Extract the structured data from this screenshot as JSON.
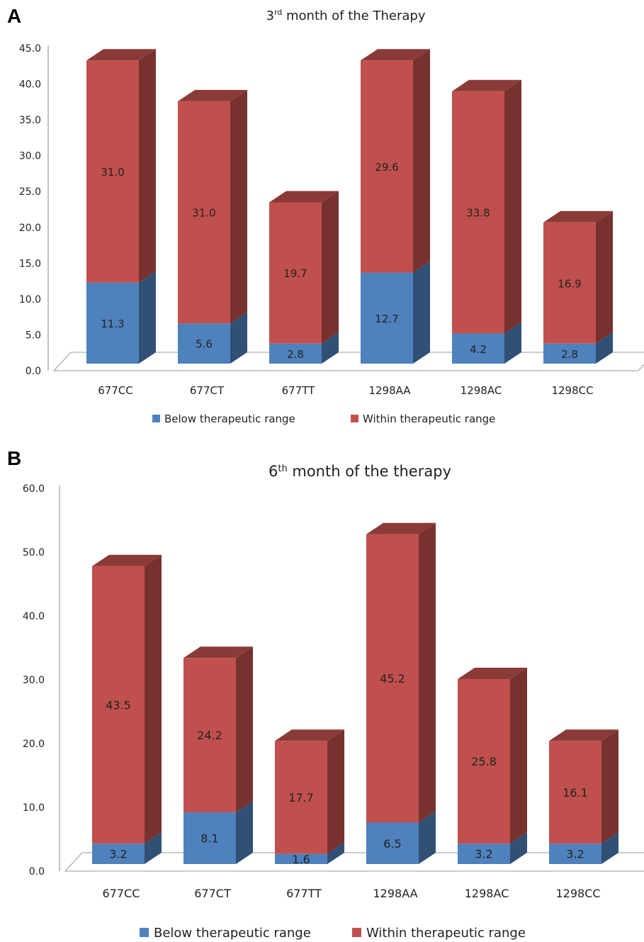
{
  "chart_data": [
    {
      "panel": "A",
      "type": "bar",
      "stacked": true,
      "title": {
        "base": "3",
        "sup": "rd",
        "rest": " month of the Therapy"
      },
      "categories": [
        "677CC",
        "677CT",
        "677TT",
        "1298AA",
        "1298AC",
        "1298CC"
      ],
      "series": [
        {
          "name": "Below therapeutic range",
          "color": "#4f81bd",
          "values": [
            11.3,
            5.6,
            2.8,
            12.7,
            4.2,
            2.8
          ]
        },
        {
          "name": "Within therapeutic range",
          "color": "#c0504d",
          "values": [
            31.0,
            31.0,
            19.7,
            29.6,
            33.8,
            16.9
          ]
        }
      ],
      "value_labels": {
        "below": [
          "11.3",
          "5.6",
          "2.8",
          "12.7",
          "4.2",
          "2.8"
        ],
        "within": [
          "31.0",
          "31.0",
          "19.7",
          "29.6",
          "33.8",
          "16.9"
        ]
      },
      "ylim": [
        0,
        45
      ],
      "yticks": [
        "0.0",
        "5.0",
        "10.0",
        "15.0",
        "20.0",
        "25.0",
        "30.0",
        "35.0",
        "40.0",
        "45.0"
      ],
      "legend_position": "bottom"
    },
    {
      "panel": "B",
      "type": "bar",
      "stacked": true,
      "title": {
        "base": "6",
        "sup": "th",
        "rest": " month of the therapy"
      },
      "categories": [
        "677CC",
        "677CT",
        "677TT",
        "1298AA",
        "1298AC",
        "1298CC"
      ],
      "series": [
        {
          "name": "Below therapeutic range",
          "color": "#4f81bd",
          "values": [
            3.2,
            8.1,
            1.6,
            6.5,
            3.2,
            3.2
          ]
        },
        {
          "name": "Within therapeutic range",
          "color": "#c0504d",
          "values": [
            43.5,
            24.2,
            17.7,
            45.2,
            25.8,
            16.1
          ]
        }
      ],
      "value_labels": {
        "below": [
          "3.2",
          "8.1",
          "1.6",
          "6.5",
          "3.2",
          "3.2"
        ],
        "within": [
          "43.5",
          "24.2",
          "17.7",
          "45.2",
          "25.8",
          "16.1"
        ]
      },
      "ylim": [
        0,
        60
      ],
      "yticks": [
        "0.0",
        "10.0",
        "20.0",
        "30.0",
        "40.0",
        "50.0",
        "60.0"
      ],
      "legend_position": "bottom"
    }
  ]
}
